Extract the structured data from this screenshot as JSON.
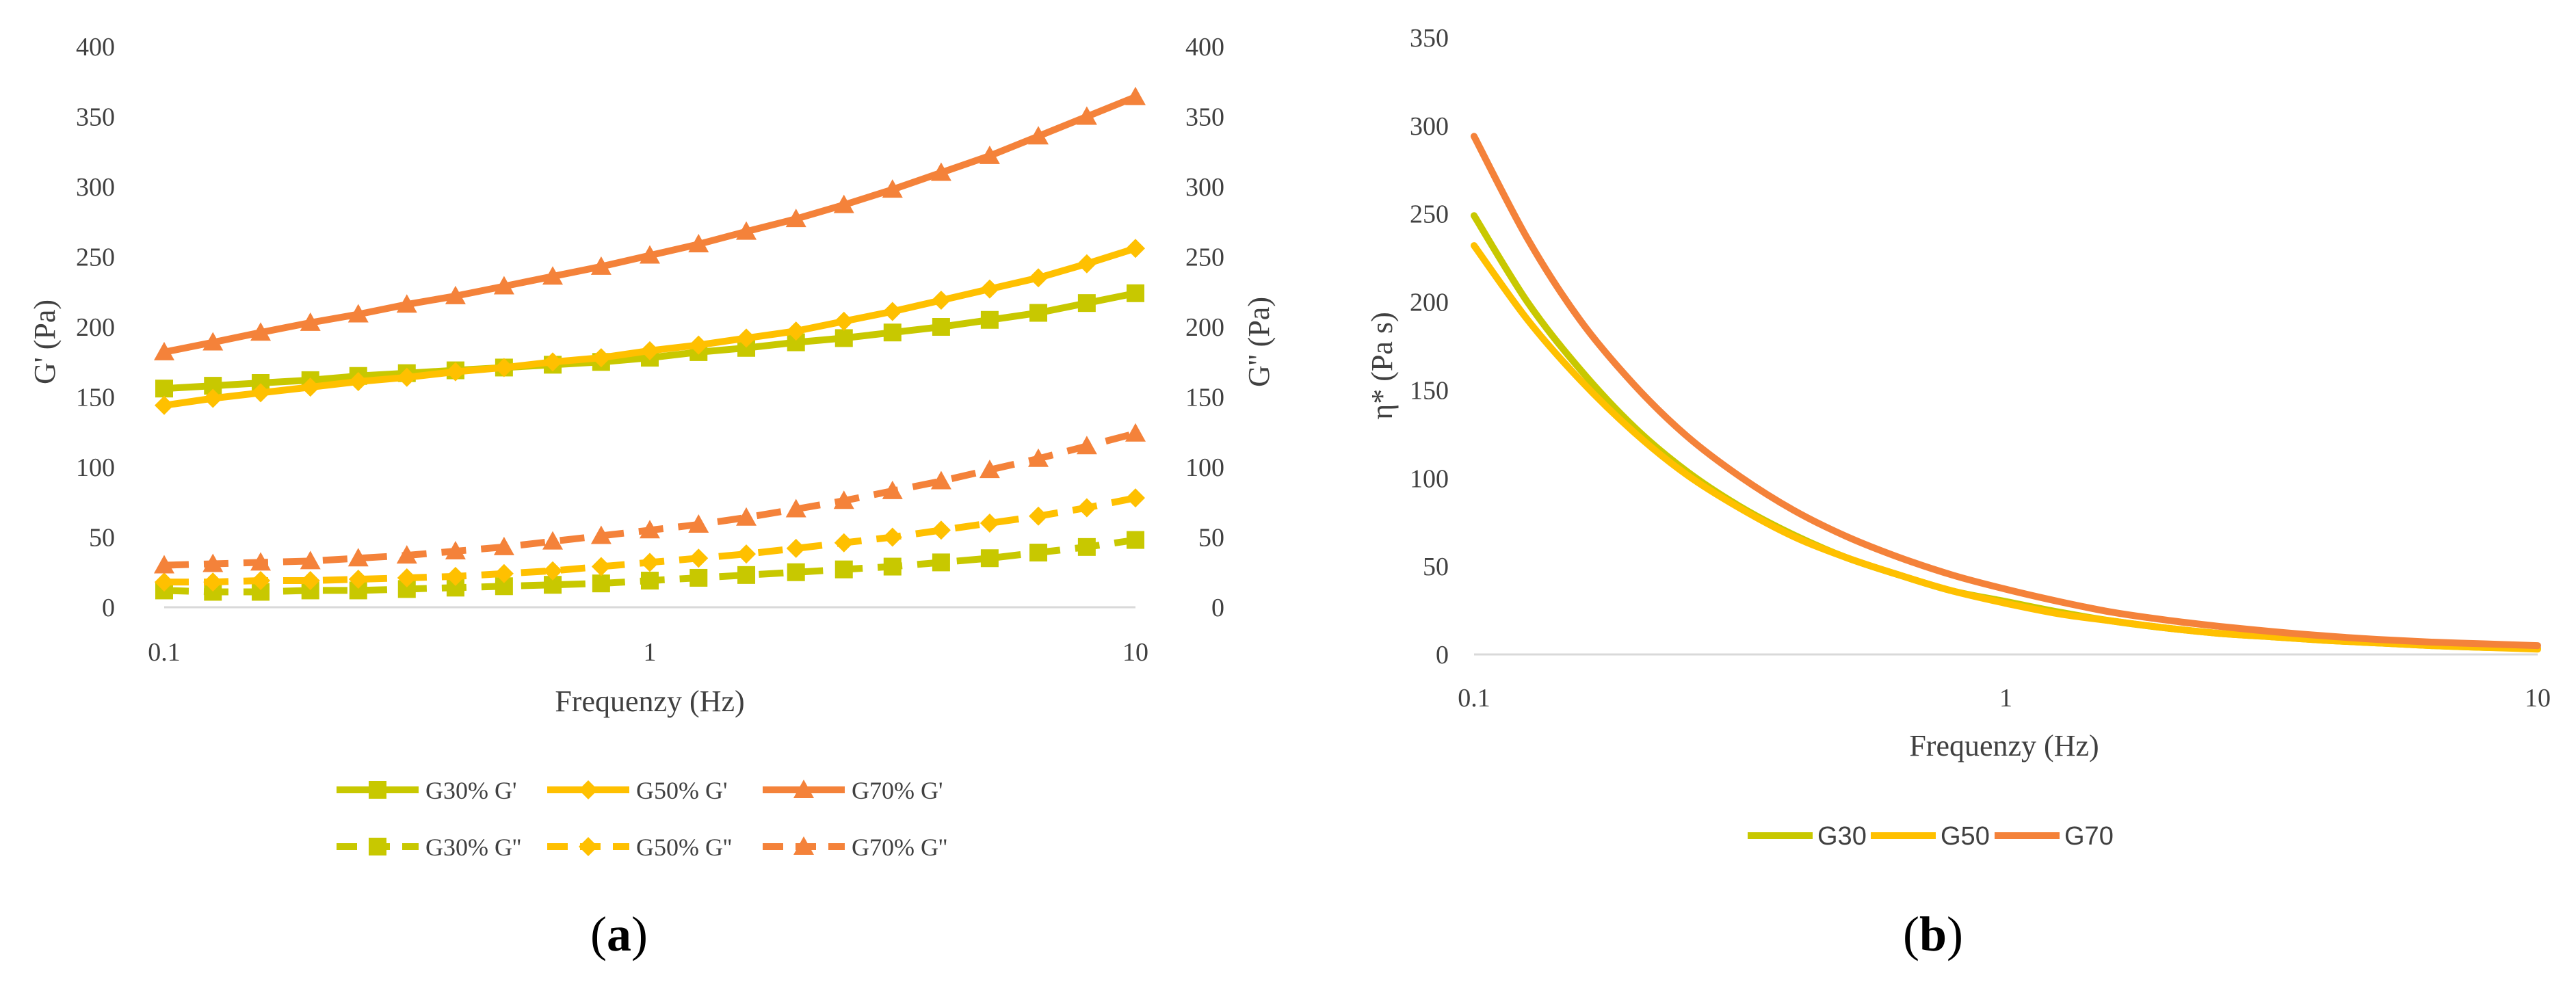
{
  "chart_data": [
    {
      "panel_label": "a",
      "type": "line",
      "x_scale": "log",
      "xlabel": "Frequenzy (Hz)",
      "ylabel_left": "G' (Pa)",
      "ylabel_right": "G'' (Pa)",
      "xlim": [
        0.1,
        10
      ],
      "ylim": [
        0,
        400
      ],
      "x_ticks": [
        "0.1",
        "1",
        "10"
      ],
      "y_ticks": [
        "0",
        "50",
        "100",
        "150",
        "200",
        "250",
        "300",
        "350",
        "400"
      ],
      "x": [
        0.1,
        0.126,
        0.158,
        0.2,
        0.251,
        0.316,
        0.398,
        0.501,
        0.631,
        0.794,
        1,
        1.26,
        1.58,
        2,
        2.51,
        3.16,
        3.98,
        5.01,
        6.31,
        7.94,
        10
      ],
      "series": [
        {
          "name": "G30% G'",
          "color": "#c8c800",
          "dash": false,
          "marker": "square",
          "values": [
            156,
            158,
            160,
            162,
            165,
            167,
            169,
            171,
            173,
            175,
            178,
            182,
            185,
            189,
            192,
            196,
            200,
            205,
            210,
            217,
            224
          ]
        },
        {
          "name": "G50% G'",
          "color": "#ffc000",
          "dash": false,
          "marker": "diamond",
          "values": [
            144,
            149,
            153,
            157,
            161,
            164,
            168,
            171,
            175,
            178,
            183,
            187,
            192,
            197,
            204,
            211,
            219,
            227,
            235,
            245,
            256
          ]
        },
        {
          "name": "G70% G'",
          "color": "#f4823a",
          "dash": false,
          "marker": "triangle",
          "values": [
            182,
            189,
            196,
            203,
            209,
            216,
            222,
            229,
            236,
            243,
            251,
            259,
            268,
            277,
            287,
            298,
            310,
            322,
            336,
            350,
            364
          ]
        },
        {
          "name": "G30% G''",
          "color": "#c8c800",
          "dash": true,
          "marker": "square",
          "values": [
            12,
            11,
            11,
            12,
            12,
            13,
            14,
            15,
            16,
            17,
            19,
            21,
            23,
            25,
            27,
            29,
            32,
            35,
            39,
            43,
            48
          ]
        },
        {
          "name": "G50% G''",
          "color": "#ffc000",
          "dash": true,
          "marker": "diamond",
          "values": [
            18,
            18,
            19,
            19,
            20,
            21,
            22,
            24,
            26,
            29,
            32,
            35,
            38,
            42,
            46,
            50,
            55,
            60,
            65,
            71,
            78
          ]
        },
        {
          "name": "G70% G''",
          "color": "#f4823a",
          "dash": true,
          "marker": "triangle",
          "values": [
            30,
            31,
            32,
            33,
            35,
            37,
            40,
            43,
            47,
            51,
            55,
            59,
            64,
            70,
            76,
            83,
            90,
            98,
            106,
            115,
            124
          ]
        }
      ],
      "legend_position": "bottom"
    },
    {
      "panel_label": "b",
      "type": "line",
      "x_scale": "log",
      "xlabel": "Frequenzy (Hz)",
      "ylabel": "η* (Pa s)",
      "xlim": [
        0.1,
        10
      ],
      "ylim": [
        0,
        350
      ],
      "x_ticks": [
        "0.1",
        "1",
        "10"
      ],
      "y_ticks": [
        "0",
        "50",
        "100",
        "150",
        "200",
        "250",
        "300",
        "350"
      ],
      "x": [
        0.1,
        0.126,
        0.158,
        0.2,
        0.251,
        0.316,
        0.398,
        0.501,
        0.631,
        0.794,
        1,
        1.26,
        1.58,
        2,
        2.51,
        3.16,
        3.98,
        5.01,
        6.31,
        7.94,
        10
      ],
      "series": [
        {
          "name": "G30",
          "color": "#c8c800",
          "values": [
            249,
            200,
            162,
            129,
            104,
            84,
            68,
            55,
            45,
            36,
            30,
            24,
            19,
            15,
            12,
            10,
            8,
            6.5,
            5,
            4,
            3.5
          ]
        },
        {
          "name": "G50",
          "color": "#ffc000",
          "values": [
            232,
            190,
            156,
            126,
            102,
            83,
            67,
            55,
            45,
            36,
            29,
            23,
            19,
            15,
            12,
            10,
            8,
            6.5,
            5,
            4,
            3
          ]
        },
        {
          "name": "G70",
          "color": "#f4823a",
          "values": [
            294,
            236,
            190,
            153,
            124,
            101,
            82,
            67,
            55,
            45,
            37,
            30,
            24,
            19.5,
            16,
            13,
            10.5,
            8.5,
            7,
            6,
            5
          ]
        }
      ],
      "legend_position": "bottom"
    }
  ]
}
